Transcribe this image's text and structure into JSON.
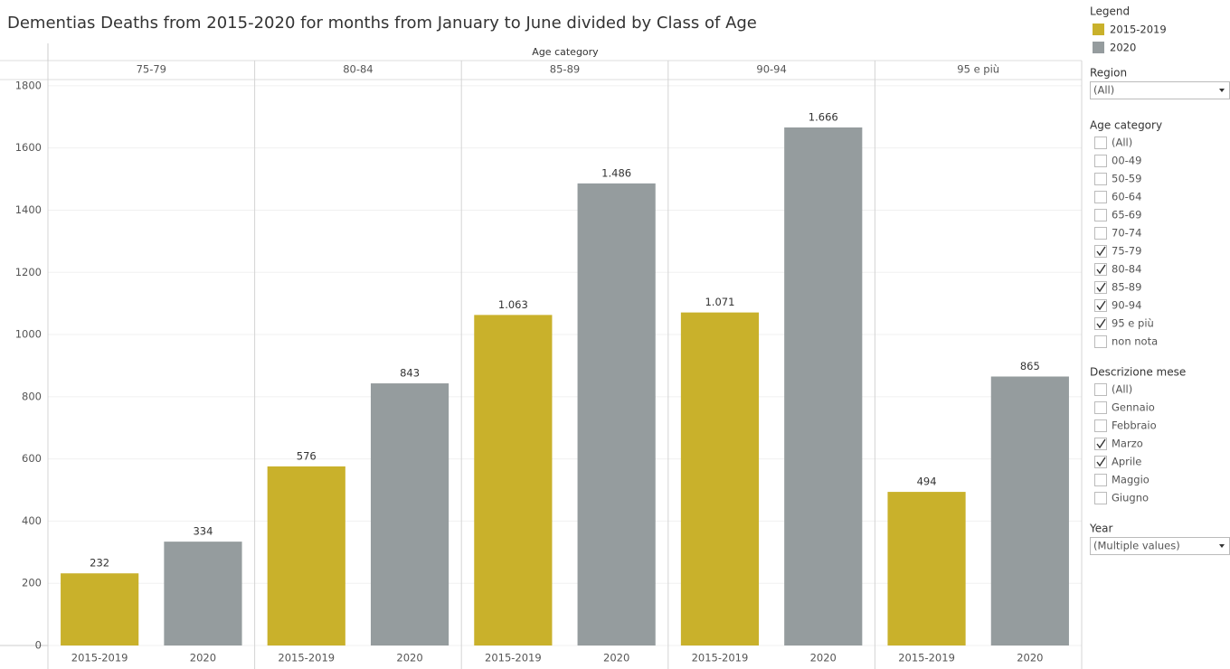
{
  "chart_data": {
    "type": "bar",
    "title": "Dementias Deaths from 2015-2020 for months from January to June divided by Class of Age",
    "x_label": "Age category",
    "categories": [
      "75-79",
      "80-84",
      "85-89",
      "90-94",
      "95 e più"
    ],
    "series": [
      {
        "name": "2015-2019",
        "color": "#c9b12b",
        "values": [
          232,
          576,
          1063,
          1071,
          494
        ],
        "value_labels": [
          "232",
          "576",
          "1.063",
          "1.071",
          "494"
        ]
      },
      {
        "name": "2020",
        "color": "#959c9e",
        "values": [
          334,
          843,
          1486,
          1666,
          865
        ],
        "value_labels": [
          "334",
          "843",
          "1.486",
          "1.666",
          "865"
        ]
      }
    ],
    "ylim": [
      0,
      1820
    ],
    "yticks": [
      0,
      200,
      400,
      600,
      800,
      1000,
      1200,
      1400,
      1600,
      1800
    ],
    "grid": true,
    "legend_title": "Legend"
  },
  "filters": [
    {
      "title": "Region",
      "kind": "dropdown",
      "value": "(All)"
    },
    {
      "title": "Age category",
      "kind": "checklist",
      "items": [
        {
          "label": "(All)",
          "checked": false
        },
        {
          "label": "00-49",
          "checked": false
        },
        {
          "label": "50-59",
          "checked": false
        },
        {
          "label": "60-64",
          "checked": false
        },
        {
          "label": "65-69",
          "checked": false
        },
        {
          "label": "70-74",
          "checked": false
        },
        {
          "label": "75-79",
          "checked": true
        },
        {
          "label": "80-84",
          "checked": true
        },
        {
          "label": "85-89",
          "checked": true
        },
        {
          "label": "90-94",
          "checked": true
        },
        {
          "label": "95 e più",
          "checked": true
        },
        {
          "label": "non nota",
          "checked": false
        }
      ]
    },
    {
      "title": "Descrizione mese",
      "kind": "checklist",
      "items": [
        {
          "label": "(All)",
          "checked": false
        },
        {
          "label": "Gennaio",
          "checked": false
        },
        {
          "label": "Febbraio",
          "checked": false
        },
        {
          "label": "Marzo",
          "checked": true
        },
        {
          "label": "Aprile",
          "checked": true
        },
        {
          "label": "Maggio",
          "checked": false
        },
        {
          "label": "Giugno",
          "checked": false
        }
      ]
    },
    {
      "title": "Year",
      "kind": "dropdown",
      "value": "(Multiple values)"
    }
  ]
}
